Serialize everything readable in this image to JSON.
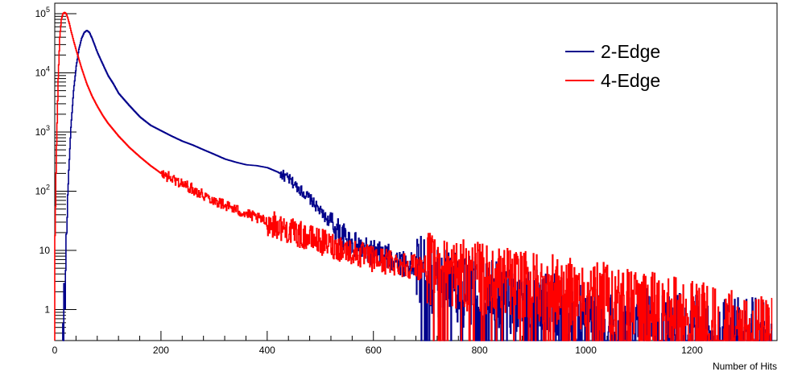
{
  "chart_data": {
    "type": "line",
    "title": "",
    "xlabel": "Number of Hits",
    "ylabel": "",
    "xlim": [
      0,
      1360
    ],
    "ylim": [
      0.3,
      150000
    ],
    "yscale": "log",
    "grid": false,
    "legend_position": "top-right",
    "x_ticks": [
      0,
      200,
      400,
      600,
      800,
      1000,
      1200
    ],
    "x_tick_labels": [
      "0",
      "200",
      "400",
      "600",
      "800",
      "1000",
      "1200"
    ],
    "y_ticks": [
      1,
      10,
      100,
      1000,
      10000,
      100000
    ],
    "y_tick_labels": [
      {
        "base": "1",
        "exp": ""
      },
      {
        "base": "10",
        "exp": ""
      },
      {
        "base": "10",
        "exp": "2"
      },
      {
        "base": "10",
        "exp": "3"
      },
      {
        "base": "10",
        "exp": "4"
      },
      {
        "base": "10",
        "exp": "5"
      }
    ],
    "series": [
      {
        "name": "2-Edge",
        "color": "#00008b",
        "x": [
          15,
          20,
          25,
          30,
          35,
          40,
          45,
          50,
          55,
          60,
          65,
          70,
          75,
          80,
          90,
          100,
          110,
          120,
          140,
          160,
          180,
          200,
          220,
          240,
          260,
          280,
          300,
          320,
          340,
          360,
          380,
          400,
          420,
          440,
          460,
          480,
          500,
          520,
          540,
          560,
          580,
          600,
          620,
          640,
          660,
          680,
          700,
          720,
          740,
          760,
          780,
          800,
          850,
          900,
          950,
          1000,
          1050,
          1100,
          1150,
          1200,
          1250,
          1300,
          1350
        ],
        "y": [
          0.3,
          6,
          150,
          1200,
          5000,
          13000,
          25000,
          38000,
          48000,
          52000,
          48000,
          38000,
          29000,
          22000,
          14000,
          9000,
          6500,
          4500,
          2800,
          1800,
          1300,
          1050,
          850,
          700,
          600,
          500,
          420,
          350,
          310,
          280,
          270,
          250,
          210,
          160,
          110,
          75,
          45,
          28,
          18,
          13,
          10,
          9,
          8,
          7,
          6,
          5,
          4,
          3,
          3,
          2,
          2,
          2,
          1.5,
          1.2,
          1,
          0.8,
          0.6,
          0.6,
          0.5,
          0.5,
          0.4,
          0.4,
          0.4
        ]
      },
      {
        "name": "4-Edge",
        "color": "#ff0000",
        "x": [
          0,
          3,
          6,
          9,
          12,
          15,
          18,
          21,
          24,
          27,
          30,
          35,
          40,
          45,
          50,
          60,
          70,
          80,
          90,
          100,
          120,
          140,
          160,
          180,
          200,
          250,
          300,
          350,
          400,
          450,
          500,
          550,
          600,
          650,
          700,
          750,
          800,
          850,
          900,
          950,
          1000,
          1050,
          1100,
          1150,
          1200,
          1250,
          1300,
          1350
        ],
        "y": [
          15,
          600,
          8000,
          40000,
          80000,
          100000,
          105000,
          100000,
          85000,
          68000,
          52000,
          35000,
          24000,
          17000,
          12000,
          6500,
          4000,
          2700,
          1900,
          1400,
          850,
          550,
          380,
          270,
          200,
          120,
          70,
          45,
          30,
          20,
          14,
          10,
          7,
          6,
          5,
          4,
          3.5,
          3,
          2.5,
          2,
          1.8,
          1.5,
          1.2,
          1,
          0.8,
          0.6,
          0.5,
          0.4
        ]
      }
    ]
  }
}
